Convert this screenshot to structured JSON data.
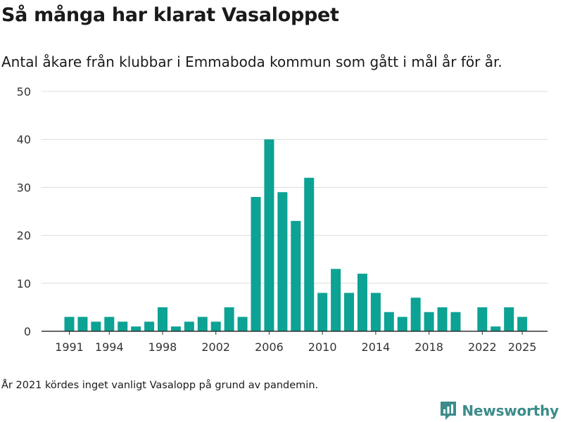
{
  "title": "Så många har klarat Vasaloppet",
  "subtitle": "Antal åkare från klubbar i Emmaboda kommun som gått i mål år för år.",
  "footnote": "År 2021 kördes inget vanligt Vasalopp på grund av pandemin.",
  "brand": {
    "name": "Newsworthy",
    "icon": "newsworthy-logo-icon",
    "color": "#3b8c8a"
  },
  "chart_data": {
    "type": "bar",
    "title": "Så många har klarat Vasaloppet",
    "subtitle": "Antal åkare från klubbar i Emmaboda kommun som gått i mål år för år.",
    "xlabel": "",
    "ylabel": "",
    "x": [
      1991,
      1992,
      1993,
      1994,
      1995,
      1996,
      1997,
      1998,
      1999,
      2000,
      2001,
      2002,
      2003,
      2004,
      2005,
      2006,
      2007,
      2008,
      2009,
      2010,
      2011,
      2012,
      2013,
      2014,
      2015,
      2016,
      2017,
      2018,
      2019,
      2020,
      2021,
      2022,
      2023,
      2024,
      2025
    ],
    "values": [
      3,
      3,
      2,
      3,
      2,
      1,
      2,
      5,
      1,
      2,
      3,
      2,
      5,
      3,
      28,
      40,
      29,
      23,
      32,
      8,
      13,
      8,
      12,
      8,
      4,
      3,
      7,
      4,
      5,
      4,
      null,
      5,
      1,
      5,
      3
    ],
    "xticks": [
      1991,
      1994,
      1998,
      2002,
      2006,
      2010,
      2014,
      2018,
      2022,
      2025
    ],
    "yticks": [
      0,
      10,
      20,
      30,
      40,
      50
    ],
    "ylim": [
      0,
      50
    ],
    "grid": true,
    "bar_color": "#0ca294",
    "grid_color": "#dcdcdc",
    "axis_color": "#333333"
  }
}
